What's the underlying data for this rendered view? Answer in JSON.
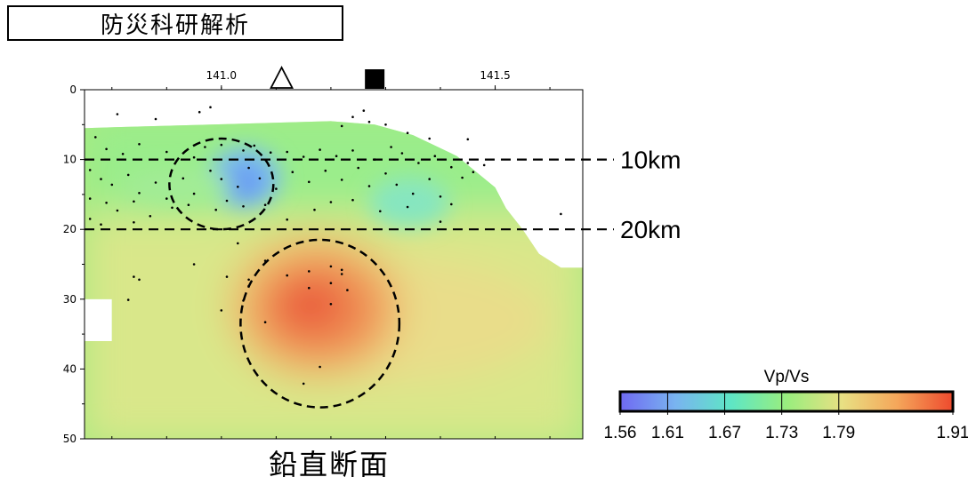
{
  "header": {
    "title": "防災科研解析"
  },
  "caption": "鉛直断面",
  "chart_data": {
    "type": "heatmap",
    "title": "",
    "x_axis": {
      "position": "top",
      "range": [
        140.75,
        141.66
      ],
      "ticks": [
        141.0,
        141.5
      ],
      "tick_labels": [
        "141.0",
        "141.5"
      ]
    },
    "y_axis": {
      "position": "left",
      "range": [
        0,
        50
      ],
      "inverted": true,
      "ticks": [
        0,
        10,
        20,
        30,
        40,
        50
      ],
      "tick_labels": [
        "0",
        "10",
        "20",
        "30",
        "40",
        "50"
      ]
    },
    "reference_lines": [
      {
        "depth": 10,
        "label": "10km",
        "style": "dashed"
      },
      {
        "depth": 20,
        "label": "20km",
        "style": "dashed"
      }
    ],
    "markers": [
      {
        "x": 141.11,
        "type": "open-triangle"
      },
      {
        "x": 141.28,
        "type": "filled-square"
      }
    ],
    "anomalies": [
      {
        "kind": "low",
        "center_x": 141.0,
        "center_depth": 13.5,
        "radius_x": 0.095,
        "radius_depth": 6.5
      },
      {
        "kind": "high",
        "center_x": 141.18,
        "center_depth": 33.5,
        "radius_x": 0.145,
        "radius_depth": 12.0
      }
    ],
    "colorbar": {
      "label": "Vp/Vs",
      "min": 1.56,
      "max": 1.91,
      "ticks": [
        1.56,
        1.61,
        1.67,
        1.73,
        1.79,
        1.91
      ],
      "tick_labels": [
        "1.56",
        "1.61",
        "1.67",
        "1.73",
        "1.79",
        "1.91"
      ],
      "colors": [
        "#6f69f2",
        "#79b4f0",
        "#5ee6c5",
        "#99ee7e",
        "#e8e083",
        "#f5a65a",
        "#ee4a2e"
      ]
    },
    "earthquakes": [
      [
        140.98,
        2.5
      ],
      [
        140.96,
        3.2
      ],
      [
        140.81,
        3.5
      ],
      [
        140.88,
        4.2
      ],
      [
        141.26,
        3.0
      ],
      [
        141.27,
        4.6
      ],
      [
        141.24,
        3.9
      ],
      [
        141.22,
        5.2
      ],
      [
        141.3,
        5.0
      ],
      [
        141.34,
        6.2
      ],
      [
        141.38,
        7.0
      ],
      [
        141.45,
        7.1
      ],
      [
        140.77,
        6.8
      ],
      [
        140.79,
        8.5
      ],
      [
        140.82,
        9.2
      ],
      [
        140.85,
        7.8
      ],
      [
        140.9,
        8.9
      ],
      [
        140.95,
        9.7
      ],
      [
        140.97,
        8.2
      ],
      [
        141.0,
        7.9
      ],
      [
        141.04,
        8.7
      ],
      [
        141.06,
        8.0
      ],
      [
        141.09,
        9.0
      ],
      [
        141.12,
        8.9
      ],
      [
        141.15,
        9.6
      ],
      [
        141.18,
        8.6
      ],
      [
        141.21,
        9.5
      ],
      [
        141.24,
        8.7
      ],
      [
        141.28,
        10.0
      ],
      [
        141.31,
        8.2
      ],
      [
        141.33,
        9.1
      ],
      [
        141.36,
        10.5
      ],
      [
        141.39,
        9.5
      ],
      [
        141.42,
        11.1
      ],
      [
        141.45,
        10.5
      ],
      [
        141.48,
        10.8
      ],
      [
        141.46,
        11.8
      ],
      [
        141.44,
        12.6
      ],
      [
        140.76,
        11.5
      ],
      [
        140.78,
        12.8
      ],
      [
        140.8,
        13.6
      ],
      [
        140.83,
        12.2
      ],
      [
        140.85,
        14.8
      ],
      [
        140.88,
        13.3
      ],
      [
        140.9,
        15.6
      ],
      [
        140.93,
        12.7
      ],
      [
        140.95,
        14.9
      ],
      [
        140.98,
        11.6
      ],
      [
        141.0,
        12.8
      ],
      [
        141.03,
        13.9
      ],
      [
        141.05,
        11.2
      ],
      [
        141.07,
        12.7
      ],
      [
        141.1,
        14.2
      ],
      [
        141.13,
        11.8
      ],
      [
        141.16,
        13.2
      ],
      [
        141.19,
        11.6
      ],
      [
        141.22,
        12.9
      ],
      [
        141.25,
        11.2
      ],
      [
        141.27,
        13.8
      ],
      [
        141.3,
        12.0
      ],
      [
        141.32,
        13.6
      ],
      [
        141.35,
        14.9
      ],
      [
        141.38,
        12.8
      ],
      [
        141.4,
        15.3
      ],
      [
        141.42,
        16.4
      ],
      [
        140.76,
        15.6
      ],
      [
        140.79,
        16.2
      ],
      [
        140.81,
        17.3
      ],
      [
        140.84,
        16.0
      ],
      [
        140.87,
        18.1
      ],
      [
        140.91,
        16.9
      ],
      [
        140.94,
        16.5
      ],
      [
        140.99,
        17.2
      ],
      [
        141.01,
        15.9
      ],
      [
        141.04,
        16.7
      ],
      [
        141.08,
        16.5
      ],
      [
        141.12,
        18.6
      ],
      [
        141.17,
        17.2
      ],
      [
        141.2,
        16.1
      ],
      [
        141.24,
        15.8
      ],
      [
        141.29,
        17.4
      ],
      [
        141.34,
        16.8
      ],
      [
        141.4,
        18.9
      ],
      [
        141.62,
        17.8
      ],
      [
        140.76,
        18.5
      ],
      [
        140.78,
        19.3
      ],
      [
        140.84,
        19.0
      ],
      [
        141.03,
        22.0
      ],
      [
        141.08,
        24.5
      ],
      [
        140.95,
        25.0
      ],
      [
        141.01,
        26.8
      ],
      [
        141.05,
        27.2
      ],
      [
        141.12,
        26.6
      ],
      [
        141.16,
        26.0
      ],
      [
        141.2,
        25.3
      ],
      [
        141.22,
        25.8
      ],
      [
        141.2,
        27.7
      ],
      [
        141.16,
        28.4
      ],
      [
        141.23,
        28.7
      ],
      [
        141.2,
        30.7
      ],
      [
        141.05,
        28.1
      ],
      [
        141.0,
        31.6
      ],
      [
        141.04,
        30.2
      ],
      [
        140.84,
        26.8
      ],
      [
        140.85,
        27.2
      ],
      [
        140.83,
        30.1
      ],
      [
        141.08,
        33.3
      ],
      [
        141.18,
        39.7
      ],
      [
        141.15,
        42.1
      ],
      [
        141.22,
        26.4
      ]
    ]
  }
}
